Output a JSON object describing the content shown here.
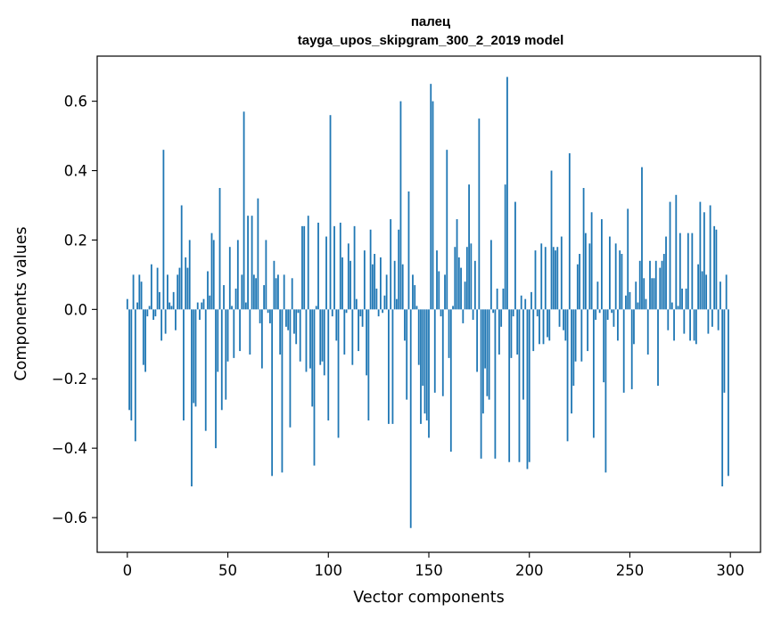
{
  "chart_data": {
    "type": "bar",
    "title_line1": "палец",
    "title_line2": "tayga_upos_skipgram_300_2_2019 model",
    "xlabel": "Vector components",
    "ylabel": "Components values",
    "xlim": [
      -15,
      315
    ],
    "ylim": [
      -0.7,
      0.73
    ],
    "xticks": [
      0,
      50,
      100,
      150,
      200,
      250,
      300
    ],
    "xtick_labels": [
      "0",
      "50",
      "100",
      "150",
      "200",
      "250",
      "300"
    ],
    "yticks": [
      0.6,
      0.4,
      0.2,
      0.0,
      -0.2,
      -0.4,
      -0.6
    ],
    "ytick_labels": [
      "0.6",
      "0.4",
      "0.2",
      "0.0",
      "−0.2",
      "−0.4",
      "−0.6"
    ],
    "bar_color": "#1f77b4",
    "x": "0..299",
    "values": [
      0.03,
      -0.29,
      -0.32,
      0.1,
      -0.38,
      0.02,
      0.1,
      0.08,
      -0.16,
      -0.18,
      -0.02,
      0.01,
      0.13,
      -0.03,
      -0.02,
      0.12,
      0.05,
      -0.09,
      0.46,
      -0.07,
      0.1,
      0.02,
      0.01,
      0.05,
      -0.06,
      0.1,
      0.12,
      0.3,
      -0.32,
      0.15,
      0.12,
      0.2,
      -0.51,
      -0.27,
      -0.28,
      0.02,
      -0.03,
      0.02,
      0.03,
      -0.35,
      0.11,
      0.04,
      0.22,
      0.2,
      -0.4,
      -0.18,
      0.35,
      -0.29,
      0.07,
      -0.26,
      -0.15,
      0.18,
      0.01,
      -0.14,
      0.06,
      0.2,
      -0.12,
      0.1,
      0.57,
      0.02,
      0.27,
      -0.13,
      0.27,
      0.1,
      0.09,
      0.32,
      -0.04,
      -0.17,
      0.07,
      0.2,
      -0.01,
      -0.04,
      -0.48,
      0.14,
      0.09,
      0.1,
      -0.13,
      -0.47,
      0.1,
      -0.05,
      -0.06,
      -0.34,
      0.09,
      -0.07,
      -0.1,
      -0.01,
      -0.15,
      0.24,
      0.24,
      -0.18,
      0.27,
      -0.17,
      -0.28,
      -0.45,
      0.01,
      0.25,
      -0.16,
      -0.15,
      -0.19,
      0.21,
      -0.32,
      0.56,
      -0.02,
      0.24,
      -0.09,
      -0.37,
      0.25,
      0.15,
      -0.13,
      -0.01,
      0.19,
      0.14,
      -0.16,
      0.24,
      0.03,
      -0.12,
      -0.02,
      -0.05,
      0.17,
      -0.19,
      -0.32,
      0.23,
      0.13,
      0.16,
      0.06,
      -0.02,
      0.15,
      -0.01,
      0.04,
      0.1,
      -0.33,
      0.26,
      -0.33,
      0.14,
      0.03,
      0.23,
      0.6,
      0.13,
      -0.09,
      -0.26,
      0.34,
      -0.63,
      0.1,
      0.07,
      0.01,
      -0.16,
      -0.33,
      -0.22,
      -0.3,
      -0.32,
      -0.37,
      0.65,
      0.6,
      -0.24,
      0.17,
      0.11,
      -0.02,
      -0.25,
      0.1,
      0.46,
      -0.14,
      -0.41,
      0.01,
      0.18,
      0.26,
      0.15,
      0.12,
      -0.04,
      0.08,
      0.18,
      0.36,
      0.19,
      -0.03,
      0.14,
      -0.18,
      0.55,
      -0.43,
      -0.3,
      -0.17,
      -0.25,
      -0.26,
      0.2,
      -0.01,
      -0.43,
      0.06,
      -0.13,
      -0.05,
      0.06,
      0.36,
      0.67,
      -0.44,
      -0.14,
      -0.02,
      0.31,
      -0.13,
      -0.44,
      0.04,
      -0.26,
      0.03,
      -0.46,
      -0.44,
      0.05,
      -0.12,
      0.17,
      -0.02,
      -0.1,
      0.19,
      -0.1,
      0.18,
      -0.08,
      -0.09,
      0.4,
      0.18,
      0.17,
      0.18,
      -0.05,
      0.21,
      -0.06,
      -0.09,
      -0.38,
      0.45,
      -0.3,
      -0.22,
      -0.15,
      0.13,
      0.16,
      -0.15,
      0.35,
      0.22,
      -0.12,
      0.19,
      0.28,
      -0.37,
      -0.03,
      0.08,
      -0.01,
      0.26,
      -0.21,
      -0.47,
      -0.03,
      0.21,
      -0.01,
      -0.05,
      0.19,
      -0.09,
      0.17,
      0.16,
      -0.24,
      0.04,
      0.29,
      0.05,
      -0.23,
      -0.1,
      0.08,
      0.02,
      0.14,
      0.41,
      0.09,
      0.03,
      -0.13,
      0.14,
      0.09,
      0.09,
      0.14,
      -0.22,
      0.12,
      0.14,
      0.16,
      0.21,
      -0.06,
      0.31,
      0.02,
      -0.09,
      0.33,
      0.01,
      0.22,
      0.06,
      -0.07,
      0.06,
      0.22,
      -0.09,
      0.22,
      -0.09,
      -0.1,
      0.13,
      0.31,
      0.11,
      0.28,
      0.1,
      -0.07,
      0.3,
      -0.05,
      0.24,
      0.23,
      -0.06,
      0.08,
      -0.51,
      -0.24,
      0.1,
      -0.48
    ]
  }
}
